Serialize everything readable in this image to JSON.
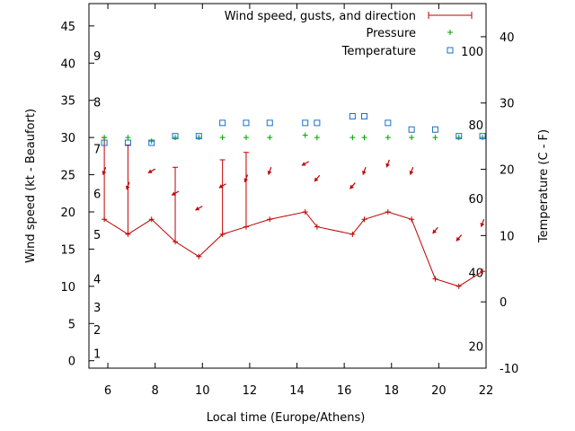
{
  "chart_data": {
    "type": "line",
    "xlabel": "Local time (Europe/Athens)",
    "ylabel_left": "Wind speed (kt - Beaufort)",
    "ylabel_right": "Temperature (C - F)",
    "xlim": [
      5.2,
      22
    ],
    "ylim_left": [
      -1,
      48
    ],
    "ylim_right": [
      -10,
      45
    ],
    "x_ticks": [
      6,
      8,
      10,
      12,
      14,
      16,
      18,
      20,
      22
    ],
    "y_ticks_left": [
      0,
      5,
      10,
      15,
      20,
      25,
      30,
      35,
      40,
      45
    ],
    "y_ticks_right": [
      -10,
      0,
      10,
      20,
      30,
      40
    ],
    "beaufort_labels": [
      {
        "label": "1",
        "y": 1
      },
      {
        "label": "2",
        "y": 4.2
      },
      {
        "label": "3",
        "y": 7.2
      },
      {
        "label": "4",
        "y": 11
      },
      {
        "label": "5",
        "y": 17
      },
      {
        "label": "6",
        "y": 22.5
      },
      {
        "label": "7",
        "y": 28.5
      },
      {
        "label": "8",
        "y": 34.8
      },
      {
        "label": "9",
        "y": 41
      }
    ],
    "fahrenheit_labels": [
      {
        "label": "20",
        "y": -6.7
      },
      {
        "label": "40",
        "y": 4.4
      },
      {
        "label": "60",
        "y": 15.6
      },
      {
        "label": "80",
        "y": 26.7
      },
      {
        "label": "100",
        "y": 37.8
      }
    ],
    "legend": {
      "position": "top-right",
      "entries": [
        "Wind speed, gusts, and direction",
        "Pressure",
        "Temperature"
      ]
    },
    "series": [
      {
        "name": "Wind speed, gusts, and direction",
        "color": "#c00000",
        "axis": "left",
        "x": [
          5.85,
          6.85,
          7.85,
          8.85,
          9.85,
          10.85,
          11.85,
          12.85,
          14.35,
          14.85,
          16.35,
          16.85,
          17.85,
          18.85,
          19.85,
          20.85,
          21.85
        ],
        "y": [
          19,
          17,
          19,
          16,
          14,
          17,
          18,
          19,
          20,
          18,
          17,
          19,
          20,
          19,
          11,
          10,
          12
        ],
        "gusts": [
          30,
          29,
          null,
          26,
          null,
          27,
          28,
          null,
          null,
          null,
          null,
          null,
          null,
          null,
          null,
          null,
          null
        ],
        "direction_deg": [
          20,
          20,
          60,
          60,
          60,
          60,
          20,
          20,
          60,
          40,
          40,
          20,
          20,
          20,
          40,
          40,
          20
        ]
      },
      {
        "name": "Pressure",
        "color": "#00a000",
        "axis": "left",
        "x": [
          5.85,
          6.85,
          7.85,
          8.85,
          9.85,
          10.85,
          11.85,
          12.85,
          14.35,
          14.85,
          16.35,
          16.85,
          17.85,
          18.85,
          19.85,
          20.85,
          21.85
        ],
        "y": [
          30,
          30,
          29.5,
          30,
          30,
          30,
          30,
          30,
          30.3,
          30,
          30,
          30,
          30,
          30,
          30,
          30,
          30
        ]
      },
      {
        "name": "Temperature",
        "color": "#1a6fc9",
        "axis": "right",
        "x": [
          5.85,
          6.85,
          7.85,
          8.85,
          9.85,
          10.85,
          11.85,
          12.85,
          14.35,
          14.85,
          16.35,
          16.85,
          17.85,
          18.85,
          19.85,
          20.85,
          21.85
        ],
        "y": [
          24,
          24,
          24,
          25,
          25,
          27,
          27,
          27,
          27,
          27,
          28,
          28,
          27,
          26,
          26,
          25,
          25
        ]
      }
    ]
  }
}
